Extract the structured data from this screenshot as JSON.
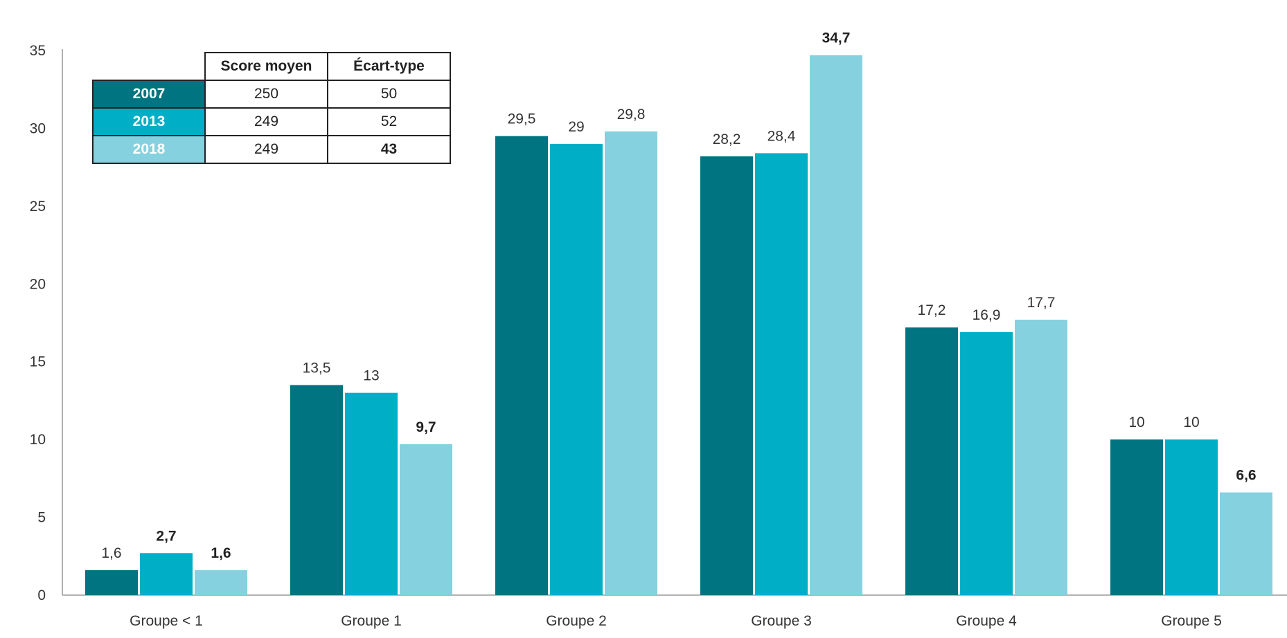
{
  "chart_data": {
    "type": "bar",
    "categories": [
      "Groupe < 1",
      "Groupe 1",
      "Groupe 2",
      "Groupe 3",
      "Groupe 4",
      "Groupe 5"
    ],
    "series": [
      {
        "name": "2007",
        "color": "#007480",
        "values": [
          1.6,
          13.5,
          29.5,
          28.2,
          17.2,
          10
        ],
        "labels": [
          "1,6",
          "13,5",
          "29,5",
          "28,2",
          "17,2",
          "10"
        ],
        "bold": [
          false,
          false,
          false,
          false,
          false,
          false
        ]
      },
      {
        "name": "2013",
        "color": "#00afc6",
        "values": [
          2.7,
          13,
          29,
          28.4,
          16.9,
          10
        ],
        "labels": [
          "2,7",
          "13",
          "29",
          "28,4",
          "16,9",
          "10"
        ],
        "bold": [
          true,
          false,
          false,
          false,
          false,
          false
        ]
      },
      {
        "name": "2018",
        "color": "#85d1df",
        "values": [
          1.6,
          9.7,
          29.8,
          34.7,
          17.7,
          6.6
        ],
        "labels": [
          "1,6",
          "9,7",
          "29,8",
          "34,7",
          "17,7",
          "6,6"
        ],
        "bold": [
          true,
          true,
          false,
          true,
          false,
          true
        ]
      }
    ],
    "yticks": [
      0,
      5,
      10,
      15,
      20,
      25,
      30,
      35
    ],
    "ylim": [
      0,
      35
    ],
    "grid": false,
    "title": "",
    "xlabel": "",
    "ylabel": ""
  },
  "legend_table": {
    "headers": [
      "Score moyen",
      "Écart-type"
    ],
    "rows": [
      {
        "year": "2007",
        "score": "250",
        "ecart": "50",
        "color": "#007480"
      },
      {
        "year": "2013",
        "score": "249",
        "ecart": "52",
        "color": "#00afc6"
      },
      {
        "year": "2018",
        "score": "249",
        "ecart": "43",
        "color": "#85d1df"
      }
    ]
  }
}
